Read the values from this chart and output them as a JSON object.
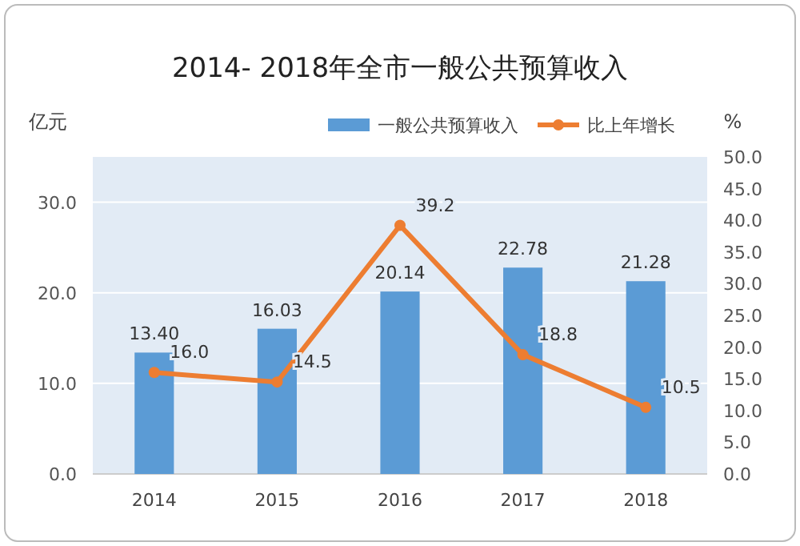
{
  "chart_data": {
    "type": "bar",
    "title": "2014- 2018年全市一般公共预算收入",
    "ylabel": "亿元",
    "y2label": "%",
    "categories": [
      "2014",
      "2015",
      "2016",
      "2017",
      "2018"
    ],
    "series": [
      {
        "name": "一般公共预算收入",
        "color": "#5b9bd5",
        "values": [
          13.4,
          16.03,
          20.14,
          22.78,
          21.28
        ],
        "value_labels": [
          "13.40",
          "16.03",
          "20.14",
          "22.78",
          "21.28"
        ]
      },
      {
        "name": "比上年增长",
        "type": "line",
        "axis": "y2",
        "color": "#ed7d31",
        "marker": "circle",
        "values": [
          16.0,
          14.5,
          39.2,
          18.8,
          10.5
        ],
        "value_labels": [
          "16.0",
          "14.5",
          "39.2",
          "18.8",
          "10.5"
        ]
      }
    ],
    "ylim": [
      0,
      35
    ],
    "yticks": [
      {
        "value": 0,
        "label": "0.0"
      },
      {
        "value": 10,
        "label": "10.0"
      },
      {
        "value": 20,
        "label": "20.0"
      },
      {
        "value": 30,
        "label": "30.0"
      }
    ],
    "y2lim": [
      0,
      50
    ],
    "y2ticks": [
      {
        "value": 0,
        "label": "0.0"
      },
      {
        "value": 5,
        "label": "5.0"
      },
      {
        "value": 10,
        "label": "10.0"
      },
      {
        "value": 15,
        "label": "15.0"
      },
      {
        "value": 20,
        "label": "20.0"
      },
      {
        "value": 25,
        "label": "25.0"
      },
      {
        "value": 30,
        "label": "30.0"
      },
      {
        "value": 35,
        "label": "35.0"
      },
      {
        "value": 40,
        "label": "40.0"
      },
      {
        "value": 45,
        "label": "45.0"
      },
      {
        "value": 50,
        "label": "50.0"
      }
    ],
    "grid": "y",
    "legend": "top right"
  }
}
